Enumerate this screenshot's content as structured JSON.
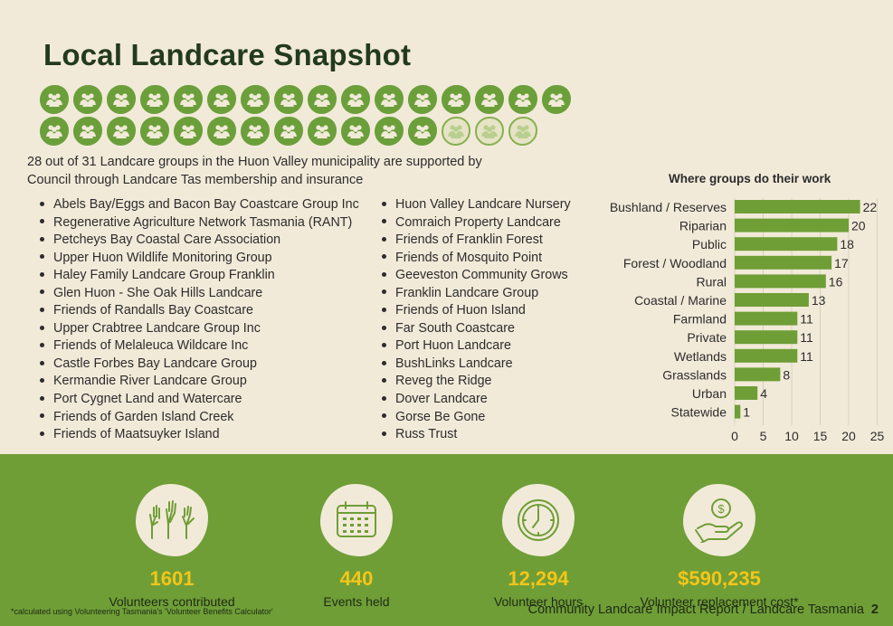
{
  "title": "Local Landcare Snapshot",
  "groups": {
    "supported": 28,
    "total": 31
  },
  "summary_text": "28 out of 31  Landcare groups in the Huon Valley municipality are supported by Council through Landcare Tas membership and insurance",
  "list_left": [
    "Abels Bay/Eggs and Bacon Bay Coastcare Group Inc",
    "Regenerative Agriculture Network Tasmania (RANT)",
    "Petcheys Bay Coastal Care Association",
    "Upper Huon Wildlife Monitoring Group",
    "Haley Family Landcare Group Franklin",
    "Glen Huon - She Oak Hills Landcare",
    "Friends of Randalls Bay Coastcare",
    "Upper Crabtree Landcare Group Inc",
    "Friends of Melaleuca Wildcare Inc",
    "Castle Forbes Bay Landcare Group",
    "Kermandie River Landcare Group",
    "Port Cygnet Land and Watercare",
    "Friends of Garden Island Creek",
    "Friends of Maatsuyker Island"
  ],
  "list_right": [
    "Huon Valley Landcare Nursery",
    "Comraich Property Landcare",
    "Friends of Franklin Forest",
    "Friends of Mosquito Point",
    "Geeveston Community Grows",
    "Franklin Landcare Group",
    "Friends of Huon Island",
    "Far South Coastcare",
    "Port Huon Landcare",
    "BushLinks Landcare",
    "Reveg the Ridge",
    "Dover Landcare",
    "Gorse Be Gone",
    "Russ Trust"
  ],
  "chart_data": {
    "type": "bar",
    "orientation": "horizontal",
    "title": "Where groups do their work",
    "categories": [
      "Bushland / Reserves",
      "Riparian",
      "Public",
      "Forest / Woodland",
      "Rural",
      "Coastal / Marine",
      "Farmland",
      "Private",
      "Wetlands",
      "Grasslands",
      "Urban",
      "Statewide"
    ],
    "values": [
      22,
      20,
      18,
      17,
      16,
      13,
      11,
      11,
      11,
      8,
      4,
      1
    ],
    "xlim": [
      0,
      25
    ],
    "xticks": [
      0,
      5,
      10,
      15,
      20,
      25
    ],
    "color": "#6f9e37",
    "grid": true
  },
  "stats": [
    {
      "value": "1601",
      "label": "Volunteers contributed",
      "icon": "raised-hands-icon"
    },
    {
      "value": "440",
      "label": "Events held",
      "icon": "calendar-icon"
    },
    {
      "value": "12,294",
      "label": "Volunteer hours",
      "icon": "clock-icon"
    },
    {
      "value": "$590,235",
      "label": "Volunteer replacement cost*",
      "icon": "money-hand-icon"
    }
  ],
  "footnote": "*calculated using Volunteering Tasmania's 'Volunteer Benefits Calculator'",
  "footer": {
    "text": "Community Landcare Impact Report / Landcare Tasmania",
    "page": "2"
  },
  "colors": {
    "accent": "#6f9e37",
    "dark": "#233a1f",
    "highlight": "#f5c518",
    "background": "#f2ead9"
  }
}
